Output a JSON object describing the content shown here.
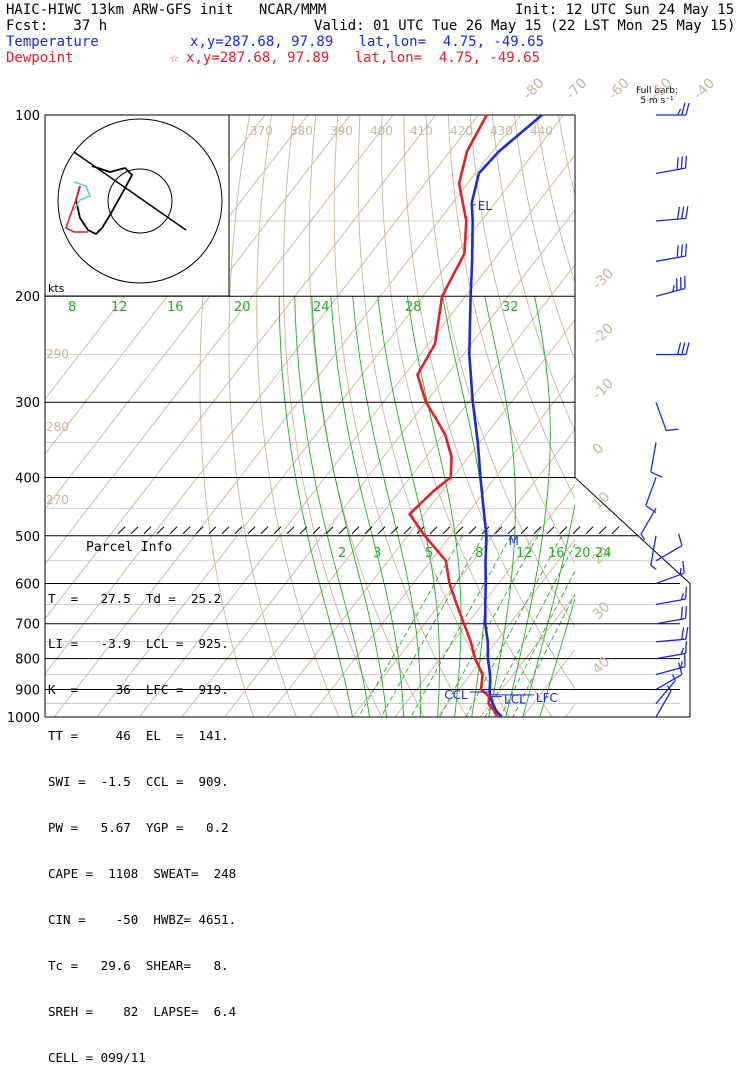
{
  "header": {
    "line1_left": "HAIC-HIWC 13km ARW-GFS init   NCAR/MMM",
    "line1_right": "Init: 12 UTC Sun 24 May 15",
    "line2_left": "Fcst:   37 h",
    "line2_right": "Valid: 01 UTC Tue 26 May 15 (22 LST Mon 25 May 15)",
    "temperature_label": "Temperature",
    "temperature_info": "x,y=287.68, 97.89   lat,lon=  4.75, -49.65",
    "dewpoint_label": "Dewpoint",
    "dewpoint_star": "☆",
    "dewpoint_info": "x,y=287.68, 97.89   lat,lon=  4.75, -49.65"
  },
  "colors": {
    "temperature": "#1a2ad6",
    "dewpoint": "#e0202a",
    "isotherm": "#c8b49a",
    "dry_adiabat": "#c8b49a",
    "moist_adiabat": "#22aa22",
    "mixing_ratio": "#22aa22",
    "isobar": "#000000",
    "hodo_temp": "#60c8f0"
  },
  "wind_barb_title": [
    "Full barb:",
    "5 m s⁻¹"
  ],
  "parcel_info": {
    "title": "Parcel Info",
    "rows": [
      "T  =   27.5  Td =  25.2",
      "LI =   -3.9  LCL =  925.",
      "K  =     36  LFC =  919.",
      "TT =     46  EL  =  141.",
      "SWI =  -1.5  CCL =  909.",
      "PW =   5.67  YGP =   0.2",
      "CAPE =  1108  SWEAT=  248",
      "CIN =    -50  HWBZ= 4651.",
      "Tc =   29.6  SHEAR=   8.",
      "SREH =    82  LAPSE=  6.4",
      "CELL = 099/11"
    ]
  },
  "chart_data": {
    "type": "line",
    "title": "",
    "xlabel": "",
    "ylabel": "",
    "y_scale": "log",
    "ylim": [
      1000,
      100
    ],
    "pressure_levels": [
      "100",
      "200",
      "300",
      "400",
      "500",
      "600",
      "700",
      "800",
      "900",
      "1000"
    ],
    "isotherm_labels": [
      "-80",
      "-70",
      "-60",
      "-50",
      "-40",
      "-30",
      "-20",
      "-10",
      "0",
      "10",
      "20",
      "30",
      "40"
    ],
    "isotherm_label_values": [
      -80,
      -70,
      -60,
      -50,
      -40,
      -30,
      -20,
      -10,
      0,
      10,
      20,
      30,
      40
    ],
    "theta_labels_top": [
      "370",
      "380",
      "390",
      "400",
      "410",
      "420",
      "430",
      "440"
    ],
    "theta_labels_left": [
      "290",
      "280",
      "270"
    ],
    "mixing_ratio_labels_500": [
      "2",
      "3",
      "5",
      "8",
      "12",
      "16",
      "20",
      "24"
    ],
    "mixing_ratio_labels_200": [
      "8",
      "12",
      "16",
      "20",
      "24",
      "28",
      "32"
    ],
    "kts_label": "kts",
    "markers": [
      "EL",
      "LCL",
      "LFC",
      "CCL",
      "M"
    ],
    "series": [
      {
        "name": "Temperature",
        "color": "#1a2ad6",
        "points": [
          [
            1000,
            25.0
          ],
          [
            975,
            22.5
          ],
          [
            950,
            20.5
          ],
          [
            925,
            18.6
          ],
          [
            900,
            17.2
          ],
          [
            875,
            16.0
          ],
          [
            850,
            14.6
          ],
          [
            800,
            11.2
          ],
          [
            750,
            8.1
          ],
          [
            700,
            4.2
          ],
          [
            650,
            0.7
          ],
          [
            600,
            -3.0
          ],
          [
            550,
            -7.2
          ],
          [
            500,
            -11.5
          ],
          [
            450,
            -17.2
          ],
          [
            400,
            -23.5
          ],
          [
            350,
            -30.5
          ],
          [
            300,
            -39.0
          ],
          [
            250,
            -48.5
          ],
          [
            200,
            -58.8
          ],
          [
            175,
            -64.8
          ],
          [
            150,
            -72.0
          ],
          [
            140,
            -75.5
          ],
          [
            125,
            -79.2
          ],
          [
            115,
            -78.5
          ],
          [
            100,
            -75.0
          ]
        ]
      },
      {
        "name": "Dewpoint",
        "color": "#e0202a",
        "points": [
          [
            1000,
            24.0
          ],
          [
            975,
            22.0
          ],
          [
            950,
            19.5
          ],
          [
            925,
            18.4
          ],
          [
            900,
            15.2
          ],
          [
            850,
            12.8
          ],
          [
            800,
            8.2
          ],
          [
            750,
            4.1
          ],
          [
            700,
            -0.8
          ],
          [
            650,
            -6.0
          ],
          [
            600,
            -11.5
          ],
          [
            550,
            -16.5
          ],
          [
            500,
            -26.0
          ],
          [
            460,
            -33.5
          ],
          [
            420,
            -32.0
          ],
          [
            400,
            -30.5
          ],
          [
            370,
            -34.0
          ],
          [
            340,
            -39.5
          ],
          [
            320,
            -44.5
          ],
          [
            300,
            -50.0
          ],
          [
            270,
            -57.0
          ],
          [
            240,
            -58.5
          ],
          [
            200,
            -65.5
          ],
          [
            170,
            -68.0
          ],
          [
            150,
            -73.5
          ],
          [
            130,
            -82.0
          ],
          [
            115,
            -86.0
          ],
          [
            100,
            -88.0
          ]
        ]
      }
    ],
    "wind_barbs_ms": [
      {
        "p": 100,
        "dir": 90,
        "spd": 12
      },
      {
        "p": 125,
        "dir": 80,
        "spd": 15
      },
      {
        "p": 150,
        "dir": 85,
        "spd": 15
      },
      {
        "p": 175,
        "dir": 80,
        "spd": 15
      },
      {
        "p": 200,
        "dir": 75,
        "spd": 18
      },
      {
        "p": 250,
        "dir": 90,
        "spd": 15
      },
      {
        "p": 300,
        "dir": 160,
        "spd": 6
      },
      {
        "p": 350,
        "dir": 190,
        "spd": 4
      },
      {
        "p": 400,
        "dir": 200,
        "spd": 5
      },
      {
        "p": 450,
        "dir": 210,
        "spd": 3
      },
      {
        "p": 500,
        "dir": 190,
        "spd": 3
      },
      {
        "p": 550,
        "dir": 60,
        "spd": 5
      },
      {
        "p": 600,
        "dir": 70,
        "spd": 7
      },
      {
        "p": 650,
        "dir": 80,
        "spd": 8
      },
      {
        "p": 700,
        "dir": 80,
        "spd": 9
      },
      {
        "p": 750,
        "dir": 85,
        "spd": 9
      },
      {
        "p": 800,
        "dir": 80,
        "spd": 8
      },
      {
        "p": 850,
        "dir": 75,
        "spd": 7
      },
      {
        "p": 900,
        "dir": 60,
        "spd": 4
      },
      {
        "p": 950,
        "dir": 40,
        "spd": 3
      },
      {
        "p": 1000,
        "dir": 30,
        "spd": 2
      }
    ]
  }
}
